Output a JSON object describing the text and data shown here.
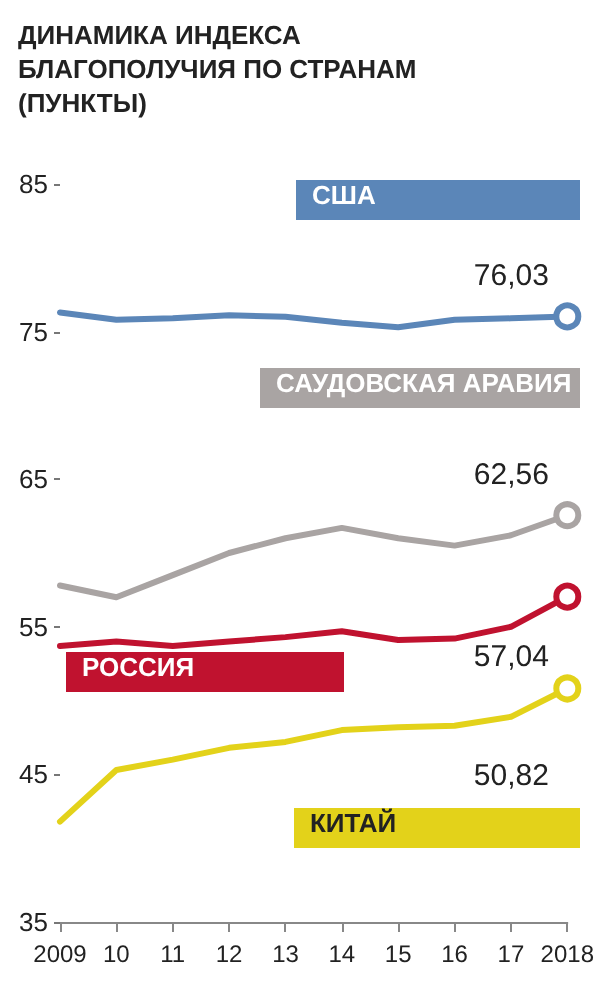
{
  "chart_data": {
    "type": "line",
    "title": "ДИНАМИКА ИНДЕКСА БЛАГОПОЛУЧИЯ ПО СТРАНАМ (ПУНКТЫ)",
    "categories": [
      "2009",
      "10",
      "11",
      "12",
      "13",
      "14",
      "15",
      "16",
      "17",
      "2018"
    ],
    "series": [
      {
        "name": "США",
        "color": "#5b86b8",
        "values": [
          76.3,
          75.8,
          75.9,
          76.1,
          76,
          75.6,
          75.3,
          75.8,
          75.9,
          76.03
        ],
        "value_labels": [
          null,
          null,
          null,
          null,
          null,
          null,
          null,
          null,
          null,
          "76,03"
        ]
      },
      {
        "name": "САУДОВСКАЯ АРАВИЯ",
        "color": "#a9a4a3",
        "values": [
          57.8,
          57,
          58.5,
          60,
          61,
          61.7,
          61,
          60.5,
          61.2,
          62.56
        ],
        "value_labels": [
          null,
          null,
          null,
          null,
          null,
          null,
          null,
          null,
          null,
          "62,56"
        ]
      },
      {
        "name": "РОССИЯ",
        "color": "#c0122f",
        "values": [
          53.7,
          54,
          53.7,
          54,
          54.3,
          54.7,
          54.1,
          54.2,
          55,
          57.04
        ],
        "value_labels": [
          null,
          null,
          null,
          null,
          null,
          null,
          null,
          null,
          null,
          "57,04"
        ]
      },
      {
        "name": "КИТАЙ",
        "color": "#e3d21a",
        "values": [
          41.8,
          45.3,
          46,
          46.8,
          47.2,
          48,
          48.2,
          48.3,
          48.9,
          50.82
        ],
        "value_labels": [
          null,
          null,
          null,
          null,
          null,
          null,
          null,
          null,
          null,
          "50,82"
        ]
      }
    ],
    "ylim": [
      35,
      85
    ],
    "yticks": [
      35,
      45,
      55,
      65,
      75,
      85
    ],
    "grid": false,
    "legend": false,
    "line_style": "solid"
  }
}
